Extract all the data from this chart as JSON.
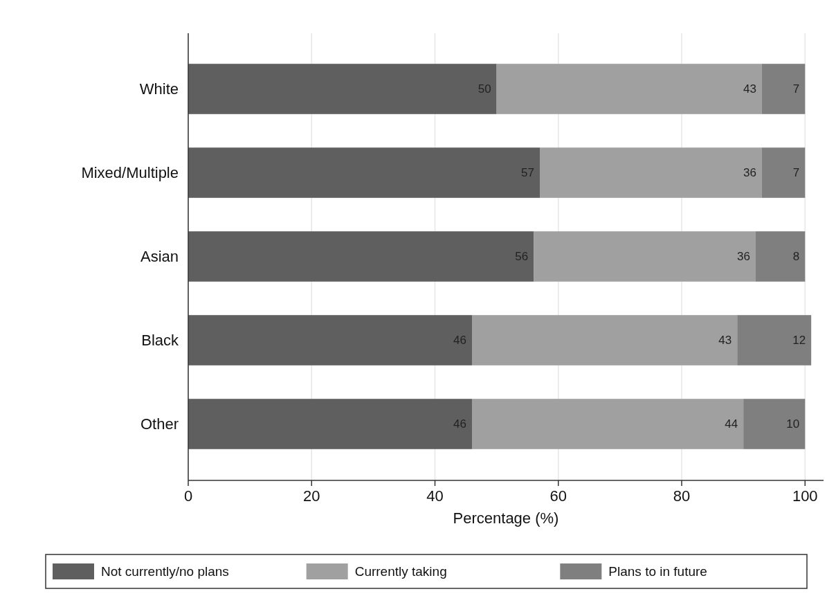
{
  "chart_data": {
    "type": "bar",
    "orientation": "horizontal",
    "stacked": true,
    "xlabel": "Percentage (%)",
    "categories": [
      "White",
      "Mixed/Multiple",
      "Asian",
      "Black",
      "Other"
    ],
    "series": [
      {
        "name": "Not currently/no plans",
        "color": "#5f5f5f",
        "values": [
          50,
          57,
          56,
          46,
          46
        ]
      },
      {
        "name": "Currently taking",
        "color": "#a0a0a0",
        "values": [
          43,
          36,
          36,
          43,
          44
        ]
      },
      {
        "name": "Plans to in future",
        "color": "#7f7f7f",
        "values": [
          7,
          7,
          8,
          12,
          10
        ]
      }
    ],
    "xlim": [
      0,
      103
    ],
    "xticks": [
      0,
      20,
      40,
      60,
      80,
      100
    ],
    "grid": "x",
    "legend": "bottom",
    "data_labels": true
  }
}
